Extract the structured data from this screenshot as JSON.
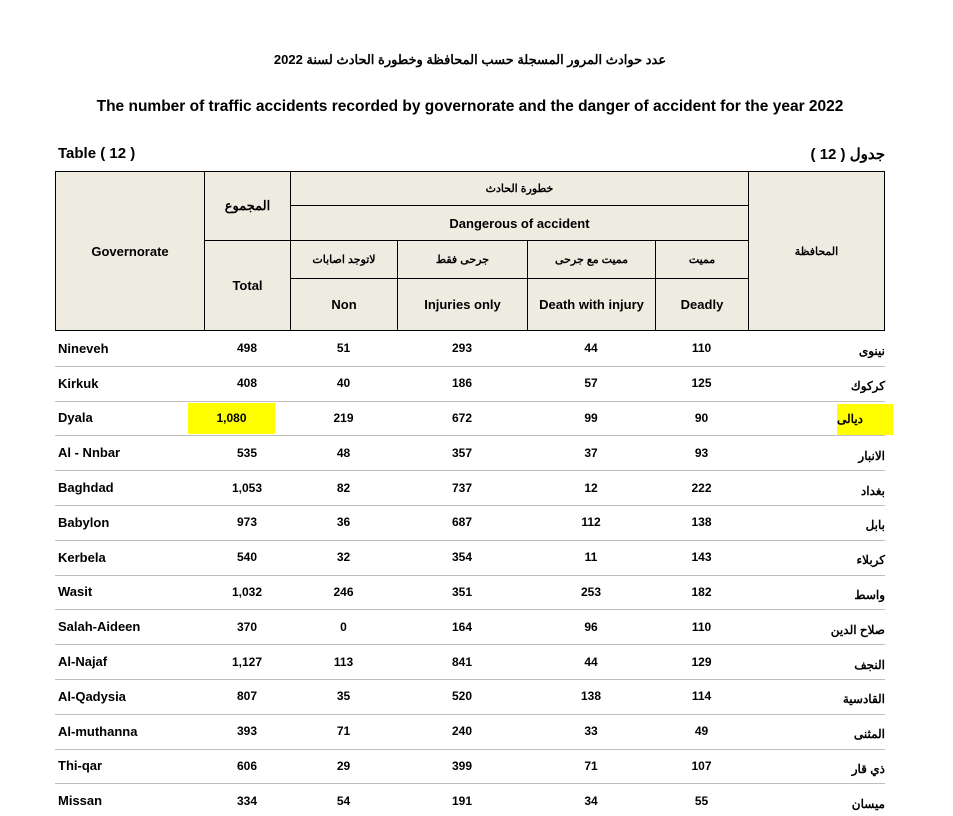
{
  "header": {
    "arabic_title": "عدد حوادث المرور المسجلة حسب المحافظة وخطورة الحادث لسنة 2022",
    "english_title": "The number of  traffic accidents recorded by governorate  and the danger of  accident for the year 2022",
    "table_label": "Table ( 12 )",
    "table_label_ar": "جدول ( 12 )"
  },
  "table": {
    "head": {
      "governorate": "Governorate",
      "total_ar": "المجموع",
      "total": "Total",
      "danger_ar": "خطورة الحادث",
      "danger": "Dangerous of accident",
      "sub_ar": [
        "لاتوجد اصابات",
        "جرحى فقط",
        "مميت مع جرحى",
        "مميت"
      ],
      "sub": [
        "Non",
        "Injuries only",
        "Death with injury",
        "Deadly"
      ],
      "governorate_ar": "المحافظة"
    },
    "rows": [
      [
        "Nineveh",
        "498",
        "51",
        "293",
        "44",
        "110",
        "نينوى"
      ],
      [
        "Kirkuk",
        "408",
        "40",
        "186",
        "57",
        "125",
        "كركوك"
      ],
      [
        "Dyala",
        "1,080",
        "219",
        "672",
        "99",
        "90",
        "ديالى"
      ],
      [
        "Al - Nnbar",
        "535",
        "48",
        "357",
        "37",
        "93",
        "الانبار"
      ],
      [
        "Baghdad",
        "1,053",
        "82",
        "737",
        "12",
        "222",
        "بغداد"
      ],
      [
        "Babylon",
        "973",
        "36",
        "687",
        "112",
        "138",
        "بابل"
      ],
      [
        "Kerbela",
        "540",
        "32",
        "354",
        "11",
        "143",
        "كربلاء"
      ],
      [
        "Wasit",
        "1,032",
        "246",
        "351",
        "253",
        "182",
        "واسط"
      ],
      [
        "Salah-Aideen",
        "370",
        "0",
        "164",
        "96",
        "110",
        "صلاح الدين"
      ],
      [
        "Al-Najaf",
        "1,127",
        "113",
        "841",
        "44",
        "129",
        "النجف"
      ],
      [
        "Al-Qadysia",
        "807",
        "35",
        "520",
        "138",
        "114",
        "القادسية"
      ],
      [
        "Al-muthanna",
        "393",
        "71",
        "240",
        "33",
        "49",
        "المثنى"
      ],
      [
        "Thi-qar",
        "606",
        "29",
        "399",
        "71",
        "107",
        "ذي قار"
      ],
      [
        "Missan",
        "334",
        "54",
        "191",
        "34",
        "55",
        "ميسان"
      ]
    ]
  }
}
